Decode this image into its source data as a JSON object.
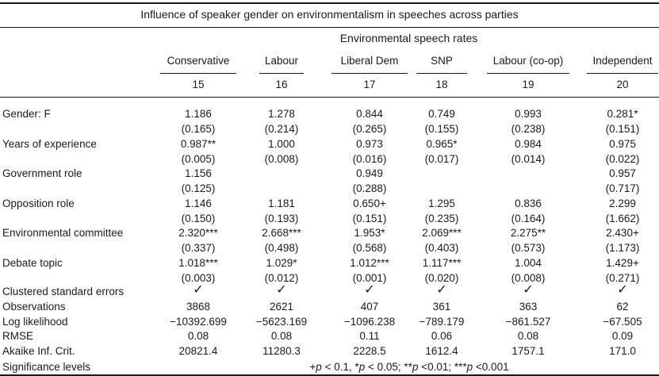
{
  "title": "Influence of speaker gender on environmentalism in speeches across parties",
  "spanner": "Environmental speech rates",
  "columns": [
    {
      "party": "Conservative",
      "model": "15"
    },
    {
      "party": "Labour",
      "model": "16"
    },
    {
      "party": "Liberal Dem",
      "model": "17"
    },
    {
      "party": "SNP",
      "model": "18"
    },
    {
      "party": "Labour (co-op)",
      "model": "19"
    },
    {
      "party": "Independent",
      "model": "20"
    }
  ],
  "coef_rows": [
    {
      "label": "Gender: F",
      "est": [
        "1.186",
        "1.278",
        "0.844",
        "0.749",
        "0.993",
        "0.281*"
      ],
      "se": [
        "(0.165)",
        "(0.214)",
        "(0.265)",
        "(0.155)",
        "(0.238)",
        "(0.151)"
      ]
    },
    {
      "label": "Years of experience",
      "est": [
        "0.987**",
        "1.000",
        "0.973",
        "0.965*",
        "0.984",
        "0.975"
      ],
      "se": [
        "(0.005)",
        "(0.008)",
        "(0.016)",
        "(0.017)",
        "(0.014)",
        "(0.022)"
      ]
    },
    {
      "label": "Government role",
      "est": [
        "1.156",
        "",
        "0.949",
        "",
        "",
        "0.957"
      ],
      "se": [
        "(0.125)",
        "",
        "(0.288)",
        "",
        "",
        "(0.717)"
      ]
    },
    {
      "label": "Opposition role",
      "est": [
        "1.146",
        "1.181",
        "0.650+",
        "1.295",
        "0.836",
        "2.299"
      ],
      "se": [
        "(0.150)",
        "(0.193)",
        "(0.151)",
        "(0.235)",
        "(0.164)",
        "(1.662)"
      ]
    },
    {
      "label": "Environmental committee",
      "est": [
        "2.320***",
        "2.668***",
        "1.953*",
        "2.069***",
        "2.275**",
        "2.430+"
      ],
      "se": [
        "(0.337)",
        "(0.498)",
        "(0.568)",
        "(0.403)",
        "(0.573)",
        "(1.173)"
      ]
    },
    {
      "label": "Debate topic",
      "est": [
        "1.018***",
        "1.029*",
        "1.012***",
        "1.117***",
        "1.004",
        "1.429+"
      ],
      "se": [
        "(0.003)",
        "(0.012)",
        "(0.001)",
        "(0.020)",
        "(0.008)",
        "(0.271)"
      ]
    }
  ],
  "stat_rows": [
    {
      "label": "Clustered standard errors",
      "values": [
        "✓",
        "✓",
        "✓",
        "✓",
        "✓",
        "✓"
      ],
      "check": true
    },
    {
      "label": "Observations",
      "values": [
        "3868",
        "2621",
        "407",
        "361",
        "363",
        "62"
      ]
    },
    {
      "label": "Log likelihood",
      "values": [
        "−10392.699",
        "−5623.169",
        "−1096.238",
        "−789.179",
        "−861.527",
        "−67.505"
      ]
    },
    {
      "label": "RMSE",
      "values": [
        "0.08",
        "0.08",
        "0.11",
        "0.06",
        "0.08",
        "0.09"
      ]
    },
    {
      "label": "Akaike Inf. Crit.",
      "values": [
        "20821.4",
        "11280.3",
        "2228.5",
        "1612.4",
        "1757.1",
        "171.0"
      ]
    }
  ],
  "significance": {
    "label": "Significance levels",
    "levels": [
      {
        "sym": "+",
        "p": "p",
        "rest": " < 0.1, "
      },
      {
        "sym": "*",
        "p": "p",
        "rest": " < 0.05; "
      },
      {
        "sym": "**",
        "p": "p",
        "rest": " <0.01; "
      },
      {
        "sym": "***",
        "p": "p",
        "rest": " <0.001"
      }
    ]
  }
}
